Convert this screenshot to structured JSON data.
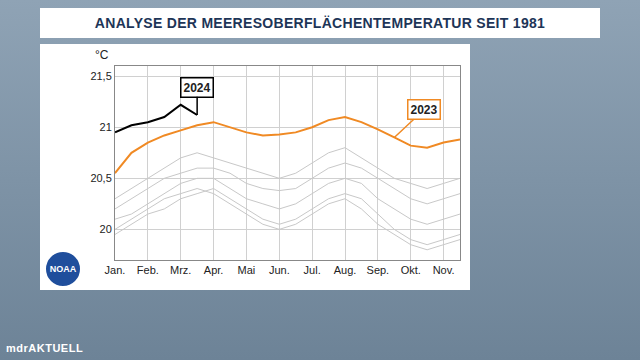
{
  "chart_data": {
    "type": "line",
    "title": "ANALYSE DER MEERESOBERFLÄCHENTEMPERATUR SEIT 1981",
    "y_label": "°C",
    "categories": [
      "Jan.",
      null,
      "Feb.",
      null,
      "Mrz.",
      null,
      "Apr.",
      null,
      "Mai",
      null,
      "Jun.",
      null,
      "Jul.",
      null,
      "Aug.",
      null,
      "Sep.",
      null,
      "Okt.",
      null,
      "Nov.",
      null
    ],
    "series": [
      {
        "color": "#c8c8c8",
        "values": [
          20.2,
          20.3,
          20.4,
          20.5,
          20.55,
          20.6,
          20.6,
          20.55,
          20.45,
          20.4,
          20.38,
          20.4,
          20.5,
          20.6,
          20.65,
          20.6,
          20.5,
          20.4,
          20.3,
          20.25,
          20.3,
          20.35
        ]
      },
      {
        "color": "#c8c8c8",
        "values": [
          20.1,
          20.15,
          20.25,
          20.35,
          20.45,
          20.5,
          20.5,
          20.4,
          20.3,
          20.25,
          20.2,
          20.25,
          20.35,
          20.45,
          20.5,
          20.45,
          20.3,
          20.2,
          20.1,
          20.05,
          20.1,
          20.15
        ]
      },
      {
        "color": "#c8c8c8",
        "values": [
          19.95,
          20.05,
          20.15,
          20.2,
          20.3,
          20.35,
          20.4,
          20.3,
          20.2,
          20.1,
          20.05,
          20.1,
          20.2,
          20.3,
          20.35,
          20.3,
          20.15,
          20.0,
          19.9,
          19.85,
          19.9,
          19.95
        ]
      },
      {
        "color": "#c8c8c8",
        "values": [
          20.3,
          20.4,
          20.5,
          20.6,
          20.7,
          20.75,
          20.7,
          20.65,
          20.6,
          20.55,
          20.5,
          20.55,
          20.65,
          20.75,
          20.8,
          20.7,
          20.6,
          20.5,
          20.45,
          20.4,
          20.45,
          20.5
        ]
      },
      {
        "color": "#c8c8c8",
        "values": [
          20.0,
          20.1,
          20.2,
          20.3,
          20.35,
          20.4,
          20.35,
          20.25,
          20.15,
          20.05,
          20.0,
          20.05,
          20.15,
          20.25,
          20.3,
          20.2,
          20.05,
          19.95,
          19.85,
          19.8,
          19.85,
          19.9
        ]
      },
      {
        "name": "2023",
        "color": "#f08a24",
        "values": [
          20.55,
          20.75,
          20.85,
          20.92,
          20.97,
          21.02,
          21.05,
          21.0,
          20.95,
          20.92,
          20.93,
          20.95,
          21.0,
          21.07,
          21.1,
          21.05,
          20.98,
          20.9,
          20.82,
          20.8,
          20.85,
          20.88
        ]
      },
      {
        "name": "2024",
        "color": "#000000",
        "values": [
          20.95,
          21.02,
          21.05,
          21.1,
          21.22,
          21.12,
          null,
          null,
          null,
          null,
          null,
          null,
          null,
          null,
          null,
          null,
          null,
          null,
          null,
          null,
          null,
          null
        ]
      }
    ],
    "ylim": [
      19.7,
      21.6
    ],
    "yticks": [
      20,
      {
        "value": 20.5,
        "label": "20,5"
      },
      21,
      {
        "value": 21.5,
        "label": "21,5"
      }
    ],
    "grid": true,
    "logo": "NOAA",
    "footer": "mdrAKTUELL"
  }
}
